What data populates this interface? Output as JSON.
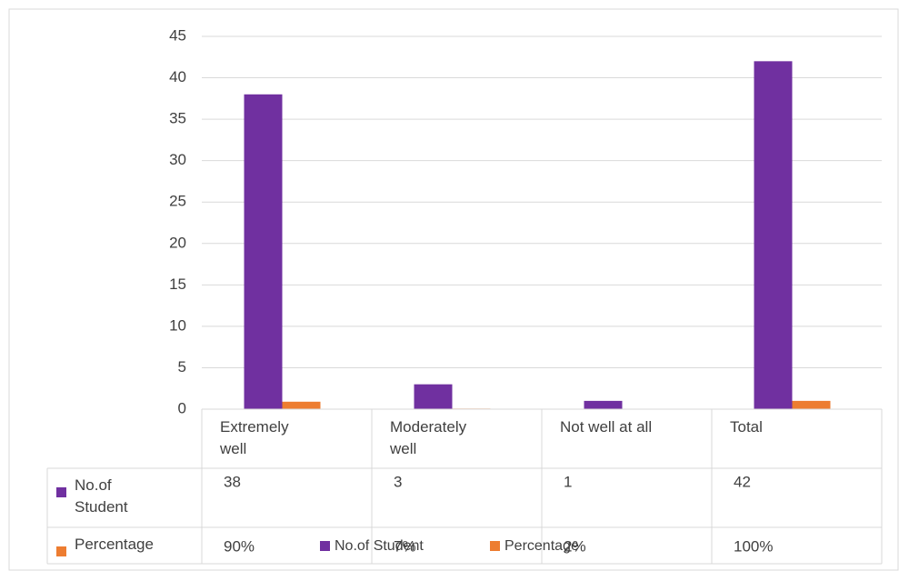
{
  "chart_data": {
    "type": "bar",
    "categories": [
      "Extremely well",
      "Moderately well",
      "Not well at all",
      "Total"
    ],
    "series": [
      {
        "name": "No.of Student",
        "color": "#7030a0",
        "values": [
          38,
          3,
          1,
          42
        ]
      },
      {
        "name": "Percentage",
        "color": "#ed7d31",
        "values": [
          0.9,
          0.07,
          0.02,
          1
        ],
        "value_labels": [
          "90%",
          "7%",
          "2%",
          "100%"
        ]
      }
    ],
    "ylim": [
      0,
      45
    ],
    "yticks": [
      0,
      5,
      10,
      15,
      20,
      25,
      30,
      35,
      40,
      45
    ],
    "grid": true,
    "legend": "bottom"
  }
}
